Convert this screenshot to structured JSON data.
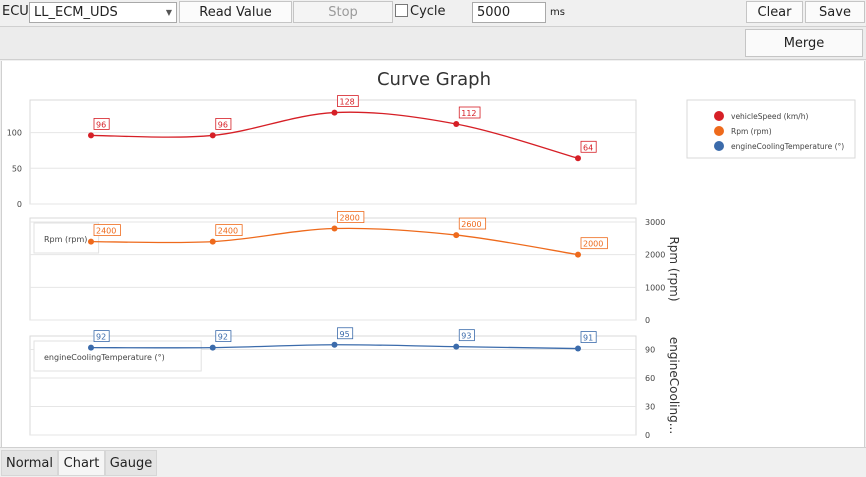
{
  "toolbar": {
    "ecu_label": "ECU:",
    "ecu_value": "LL_ECM_UDS",
    "read_label": "Read Value",
    "stop_label": "Stop",
    "cycle_label": "Cycle",
    "interval_value": "5000",
    "interval_unit": "ms",
    "clear_label": "Clear",
    "save_label": "Save"
  },
  "strip": {
    "merge_label": "Merge"
  },
  "tabs": [
    "Normal",
    "Chart",
    "Gauge"
  ],
  "active_tab": 1,
  "chart_data": {
    "type": "line",
    "title": "Curve Graph",
    "x": [
      1,
      2,
      3,
      4,
      5
    ],
    "legend_position": "top-right",
    "legend": [
      "vehicleSpeed (km/h)",
      "Rpm (rpm)",
      "engineCoolingTemperature (°)"
    ],
    "panels": [
      {
        "name": "vehicleSpeed (km/h)",
        "color": "#d61f26",
        "values": [
          96,
          96,
          128,
          112,
          64
        ],
        "ylim": [
          0,
          140
        ],
        "ticks": [
          0,
          50,
          100
        ],
        "axis_side": "left",
        "axis_label": "",
        "tag": ""
      },
      {
        "name": "Rpm (rpm)",
        "color": "#ee6a1c",
        "values": [
          2400,
          2400,
          2800,
          2600,
          2000
        ],
        "ylim": [
          0,
          3000
        ],
        "ticks": [
          0,
          1000,
          2000,
          3000
        ],
        "axis_side": "right",
        "axis_label": "Rpm (rpm)",
        "tag": "Rpm (rpm)"
      },
      {
        "name": "engineCoolingTemperature (°)",
        "color": "#3b6bab",
        "values": [
          92,
          92,
          95,
          93,
          91
        ],
        "ylim": [
          0,
          100
        ],
        "ticks": [
          0,
          30,
          60,
          90
        ],
        "axis_side": "right",
        "axis_label": "engineCooling...",
        "tag": "engineCoolingTemperature (°)"
      }
    ]
  }
}
